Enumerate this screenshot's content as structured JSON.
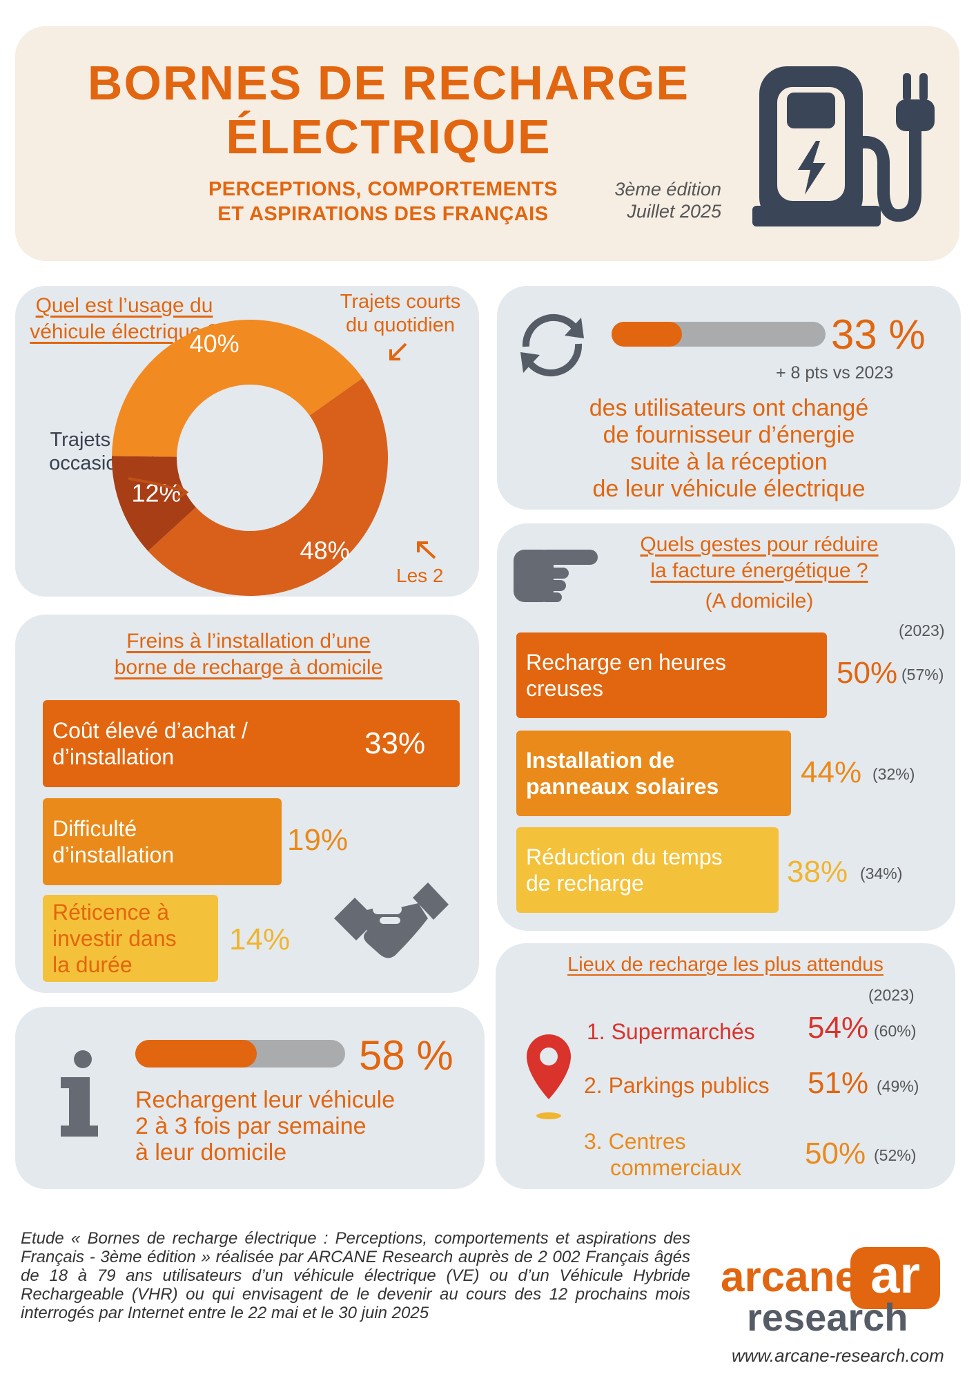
{
  "header": {
    "title_line1": "BORNES DE RECHARGE",
    "title_line2": "ÉLECTRIQUE",
    "subtitle_line1": "PERCEPTIONS, COMPORTEMENTS",
    "subtitle_line2": "ET ASPIRATIONS DES FRANÇAIS",
    "edition": "3ème édition",
    "date": "Juillet 2025",
    "icon": "charging-station-icon"
  },
  "usage": {
    "title_line1": "Quel est l’usage du",
    "title_line2": "véhicule électrique ?",
    "label_short_1": "Trajets courts",
    "label_short_2": "du quotidien",
    "label_long_1": "Trajets longs",
    "label_long_2": "occasionnels",
    "label_both": "Les 2",
    "slices": [
      {
        "label": "Trajets courts du quotidien",
        "value": 40,
        "text": "40%",
        "color": "#f28a22"
      },
      {
        "label": "Les 2",
        "value": 48,
        "text": "48%",
        "color": "#d9601a"
      },
      {
        "label": "Trajets longs occasionnels",
        "value": 12,
        "text": "12%",
        "color": "#a83e15"
      }
    ]
  },
  "supplier": {
    "value": 33,
    "percent_text": "33 %",
    "delta": "+ 8 pts vs 2023",
    "line1": "des utilisateurs ont changé",
    "line2": "de fournisseur d’énergie",
    "line3": "suite à la réception",
    "line4": "de leur véhicule électrique",
    "icon": "refresh-arrows-icon"
  },
  "barriers": {
    "title_line1": "Freins à l’installation d’une",
    "title_line2": "borne de recharge à domicile",
    "items": [
      {
        "line1": "Coût élevé d’achat /",
        "line2": "d’installation",
        "line3": "",
        "value": 33,
        "text": "33%",
        "color": "#e2660f"
      },
      {
        "line1": "Difficulté",
        "line2": "d’installation",
        "line3": "",
        "value": 19,
        "text": "19%",
        "color": "#ea8a1a"
      },
      {
        "line1": "Réticence à",
        "line2": "investir dans",
        "line3": "la durée",
        "value": 14,
        "text": "14%",
        "color": "#f4c13a"
      }
    ],
    "icon": "handshake-icon"
  },
  "gestures": {
    "title_line1": "Quels gestes pour réduire",
    "title_line2": "la facture énergétique ?",
    "subtitle": "(A domicile)",
    "year_header": "(2023)",
    "items": [
      {
        "line1": "Recharge en heures",
        "line2": "creuses",
        "value": 50,
        "text": "50%",
        "prev": "(57%)",
        "color": "#e2660f"
      },
      {
        "line1": "Installation de",
        "line2": "panneaux solaires",
        "value": 44,
        "text": "44%",
        "prev": "(32%)",
        "color": "#ea8a1a"
      },
      {
        "line1": "Réduction du temps",
        "line2": "de recharge",
        "value": 38,
        "text": "38%",
        "prev": "(34%)",
        "color": "#f4c13a"
      }
    ],
    "icon": "pointing-hand-icon"
  },
  "home_charging": {
    "value": 58,
    "percent_text": "58 %",
    "line1": "Rechargent leur véhicule",
    "line2": "2 à 3 fois par semaine",
    "line3": "à leur domicile",
    "icon": "info-icon"
  },
  "places": {
    "title": "Lieux de recharge les plus attendus",
    "year_header": "(2023)",
    "items": [
      {
        "rank": "1.",
        "line1": "Supermarchés",
        "line2": "",
        "text": "54%",
        "prev": "(60%)",
        "color": "#d9332b"
      },
      {
        "rank": "2.",
        "line1": "Parkings publics",
        "line2": "",
        "text": "51%",
        "prev": "(49%)",
        "color": "#e2660f"
      },
      {
        "rank": "3.",
        "line1": "Centres",
        "line2": "commerciaux",
        "text": "50%",
        "prev": "(52%)",
        "color": "#ea8a1a"
      }
    ],
    "icon": "map-pin-icon"
  },
  "footer": {
    "study_text": "Etude « Bornes de recharge électrique : Perceptions, comportements et aspirations des Français - 3ème édition » réalisée par ARCANE Research auprès de 2 002 Français âgés de 18 à 79 ans utilisateurs d’un véhicule électrique (VE) ou d’un Véhicule Hybride Rechargeable (VHR) ou qui envisagent de le devenir au cours des 12 prochains mois interrogés par Internet entre le 22 mai et le 30 juin 2025",
    "brand_line1": "arcane",
    "brand_line2": "research",
    "brand_mark": "ar",
    "website": "www.arcane-research.com"
  }
}
